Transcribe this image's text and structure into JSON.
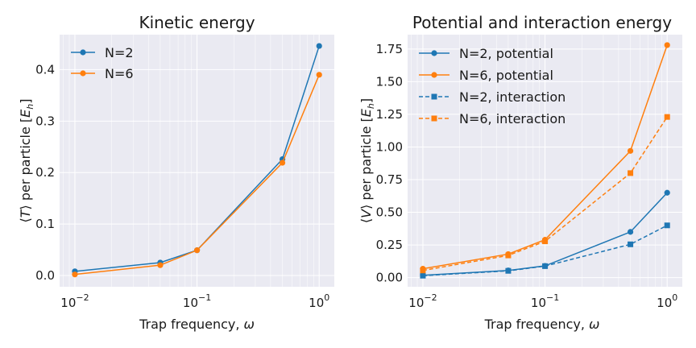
{
  "chart_data": [
    {
      "type": "line",
      "title": "Kinetic energy",
      "xlabel": "Trap frequency, ω",
      "ylabel": "⟨T⟩ per particle [E_h]",
      "xscale": "log",
      "x": [
        0.01,
        0.05,
        0.1,
        0.5,
        1.0
      ],
      "xlim": [
        0.0075,
        1.33
      ],
      "ylim": [
        -0.022,
        0.468
      ],
      "xticks": [
        {
          "base": "10",
          "exp": "−2",
          "value": 0.01
        },
        {
          "base": "10",
          "exp": "−1",
          "value": 0.1
        },
        {
          "base": "10",
          "exp": "0",
          "value": 1
        }
      ],
      "yticks": [
        "0.0",
        "0.1",
        "0.2",
        "0.3",
        "0.4"
      ],
      "ytick_values": [
        0.0,
        0.1,
        0.2,
        0.3,
        0.4
      ],
      "grid": true,
      "legend_position": "top-left",
      "series": [
        {
          "name": "N=2",
          "color": "#1f77b4",
          "marker": "circle",
          "linestyle": "solid",
          "values": [
            0.008,
            0.025,
            0.049,
            0.226,
            0.446
          ]
        },
        {
          "name": "N=6",
          "color": "#ff7f0e",
          "marker": "circle",
          "linestyle": "solid",
          "values": [
            0.002,
            0.02,
            0.049,
            0.219,
            0.39
          ]
        }
      ]
    },
    {
      "type": "line",
      "title": "Potential and interaction energy",
      "xlabel": "Trap frequency, ω",
      "ylabel": "⟨V⟩ per particle [E_h]",
      "xscale": "log",
      "x": [
        0.01,
        0.05,
        0.1,
        0.5,
        1.0
      ],
      "xlim": [
        0.0075,
        1.33
      ],
      "ylim": [
        -0.07,
        1.86
      ],
      "xticks": [
        {
          "base": "10",
          "exp": "−2",
          "value": 0.01
        },
        {
          "base": "10",
          "exp": "−1",
          "value": 0.1
        },
        {
          "base": "10",
          "exp": "0",
          "value": 1
        }
      ],
      "yticks": [
        "0.00",
        "0.25",
        "0.50",
        "0.75",
        "1.00",
        "1.25",
        "1.50",
        "1.75"
      ],
      "ytick_values": [
        0.0,
        0.25,
        0.5,
        0.75,
        1.0,
        1.25,
        1.5,
        1.75
      ],
      "grid": true,
      "legend_position": "top-left",
      "series": [
        {
          "name": "N=2, potential",
          "color": "#1f77b4",
          "marker": "circle",
          "linestyle": "solid",
          "values": [
            0.018,
            0.055,
            0.09,
            0.35,
            0.65
          ]
        },
        {
          "name": "N=6, potential",
          "color": "#ff7f0e",
          "marker": "circle",
          "linestyle": "solid",
          "values": [
            0.068,
            0.18,
            0.29,
            0.97,
            1.78
          ]
        },
        {
          "name": "N=2, interaction",
          "color": "#1f77b4",
          "marker": "square",
          "linestyle": "dashed",
          "values": [
            0.015,
            0.052,
            0.088,
            0.255,
            0.4
          ]
        },
        {
          "name": "N=6, interaction",
          "color": "#ff7f0e",
          "marker": "square",
          "linestyle": "dashed",
          "values": [
            0.055,
            0.17,
            0.278,
            0.8,
            1.23
          ]
        }
      ]
    }
  ]
}
